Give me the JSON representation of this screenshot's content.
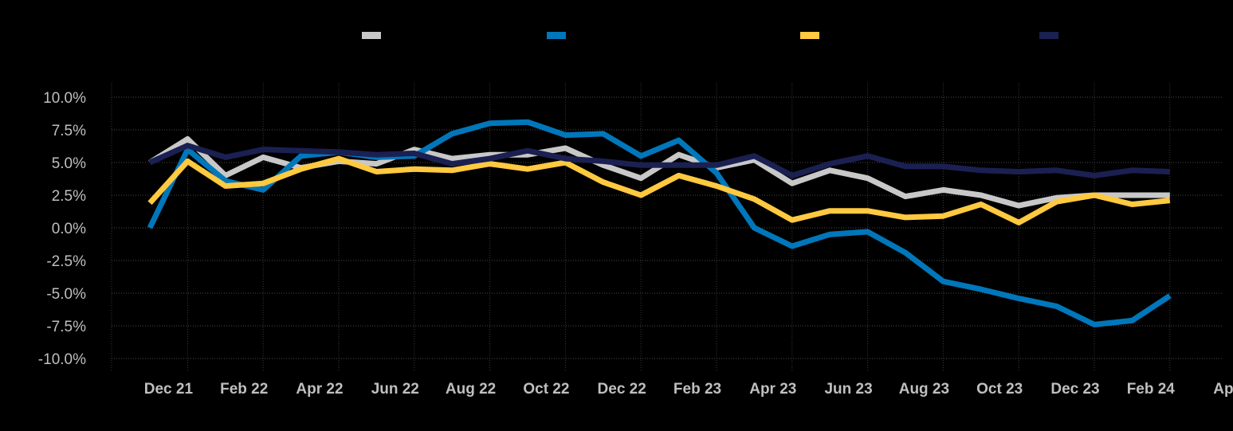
{
  "chart_data": {
    "type": "line",
    "title": "",
    "xlabel": "",
    "ylabel": "",
    "ylim": [
      -10,
      10
    ],
    "y_ticks": [
      {
        "value": 10,
        "label": "10.0%"
      },
      {
        "value": 7.5,
        "label": "7.5%"
      },
      {
        "value": 5,
        "label": "5.0%"
      },
      {
        "value": 2.5,
        "label": "2.5%"
      },
      {
        "value": 0,
        "label": "0.0%"
      },
      {
        "value": -2.5,
        "label": "-2.5%"
      },
      {
        "value": -5,
        "label": "-5.0%"
      },
      {
        "value": -7.5,
        "label": "-7.5%"
      },
      {
        "value": -10,
        "label": "-10.0%"
      }
    ],
    "x_ticks": [
      "Dec 21",
      "Feb 22",
      "Apr 22",
      "Jun 22",
      "Aug 22",
      "Oct 22",
      "Dec 22",
      "Feb 23",
      "Apr 23",
      "Jun 23",
      "Aug 23",
      "Oct 23",
      "Dec 23",
      "Feb 24",
      "Apr"
    ],
    "x": [
      "Nov 21",
      "Dec 21",
      "Jan 22",
      "Feb 22",
      "Mar 22",
      "Apr 22",
      "May 22",
      "Jun 22",
      "Jul 22",
      "Aug 22",
      "Sep 22",
      "Oct 22",
      "Nov 22",
      "Dec 22",
      "Jan 23",
      "Feb 23",
      "Mar 23",
      "Apr 23",
      "May 23",
      "Jun 23",
      "Jul 23",
      "Aug 23",
      "Sep 23",
      "Oct 23",
      "Nov 23",
      "Dec 23",
      "Jan 24",
      "Feb 24"
    ],
    "grid": true,
    "legend_position": "top",
    "series": [
      {
        "color": "#c8c8c8",
        "values": [
          5.0,
          6.8,
          4.0,
          5.4,
          4.6,
          5.1,
          4.9,
          6.0,
          5.3,
          5.6,
          5.6,
          6.1,
          4.8,
          3.8,
          5.6,
          4.6,
          5.2,
          3.4,
          4.4,
          3.8,
          2.4,
          2.9,
          2.5,
          1.7,
          2.3,
          2.5,
          2.5,
          2.5
        ]
      },
      {
        "color": "#0077bb",
        "values": [
          0.0,
          6.0,
          3.6,
          2.9,
          5.5,
          5.8,
          5.4,
          5.5,
          7.2,
          8.0,
          8.1,
          7.1,
          7.2,
          5.5,
          6.7,
          4.2,
          0.0,
          -1.4,
          -0.5,
          -0.3,
          -1.9,
          -4.1,
          -4.7,
          -5.4,
          -6.0,
          -7.4,
          -7.1,
          -5.2
        ]
      },
      {
        "color": "#ffc940",
        "values": [
          1.9,
          5.1,
          3.2,
          3.4,
          4.5,
          5.3,
          4.3,
          4.5,
          4.4,
          4.9,
          4.5,
          5.0,
          3.5,
          2.5,
          4.0,
          3.2,
          2.2,
          0.6,
          1.3,
          1.3,
          0.8,
          0.9,
          1.8,
          0.4,
          2.0,
          2.5,
          1.8,
          2.1
        ]
      },
      {
        "color": "#1b2052",
        "values": [
          5.0,
          6.3,
          5.4,
          6.0,
          5.9,
          5.8,
          5.6,
          5.7,
          4.9,
          5.3,
          5.9,
          5.3,
          5.1,
          4.8,
          4.8,
          4.8,
          5.5,
          4.0,
          4.9,
          5.5,
          4.7,
          4.7,
          4.4,
          4.3,
          4.4,
          4.0,
          4.4,
          4.3
        ]
      }
    ]
  }
}
